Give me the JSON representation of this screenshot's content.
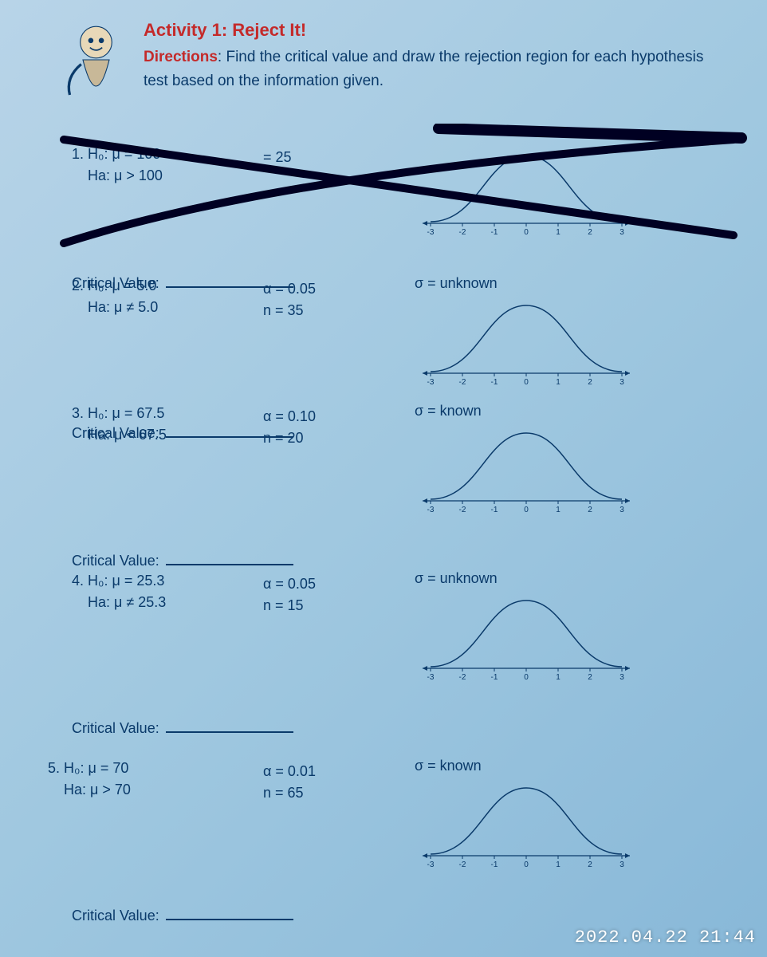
{
  "header": {
    "activity_title": "Activity 1: Reject It!",
    "directions_label": "Directions",
    "directions_text": ": Find the critical value and draw the rejection region for each hypothesis test based on the information given."
  },
  "problems": [
    {
      "num": "1.",
      "h0": "H₀: μ = 100",
      "ha": "Ha: μ > 100",
      "alpha": "",
      "n_extra": "= 25",
      "sigma": "",
      "cv_label": "Critical Value:"
    },
    {
      "num": "2.",
      "h0": "H₀: μ = 5.0",
      "ha": "Ha: μ ≠ 5.0",
      "alpha": "α = 0.05",
      "n": "n = 35",
      "sigma": "σ = unknown",
      "cv_label": "Critical Value:"
    },
    {
      "num": "3.",
      "h0": "H₀: μ = 67.5",
      "ha": "Ha: μ < 67.5",
      "alpha": "α = 0.10",
      "n": "n = 20",
      "sigma": "σ = known",
      "cv_label": "Critical Value:"
    },
    {
      "num": "4.",
      "h0": "H₀: μ = 25.3",
      "ha": "Ha: μ ≠ 25.3",
      "alpha": "α = 0.05",
      "n": "n = 15",
      "sigma": "σ = unknown",
      "cv_label": "Critical Value:"
    },
    {
      "num": "5.",
      "h0": "H₀: μ = 70",
      "ha": "Ha: μ > 70",
      "alpha": "α = 0.01",
      "n": "n = 65",
      "sigma": "σ = known",
      "cv_label": "Critical Value:"
    }
  ],
  "curve": {
    "axis_color": "#0a3a6a",
    "curve_color": "#0a3a6a",
    "xticks": [
      "-3",
      "-2",
      "-1",
      "0",
      "1",
      "2",
      "3"
    ],
    "tick_fontsize": 10
  },
  "colors": {
    "title_red": "#c42a2a",
    "text_blue": "#0a3a6a",
    "bg_light": "#b8d4e8"
  },
  "timestamp": "2022.04.22 21:44"
}
